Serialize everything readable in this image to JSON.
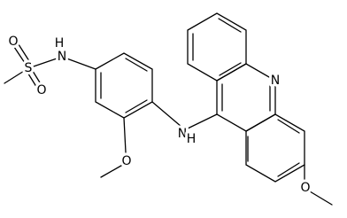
{
  "atoms": [
    {
      "label": "S"
    },
    {
      "label": "O"
    },
    {
      "label": "O"
    },
    {
      "label": "N"
    },
    {
      "label": "H"
    },
    {
      "label": "O"
    },
    {
      "label": "N"
    },
    {
      "label": "H"
    },
    {
      "label": "N"
    },
    {
      "label": "O"
    }
  ]
}
